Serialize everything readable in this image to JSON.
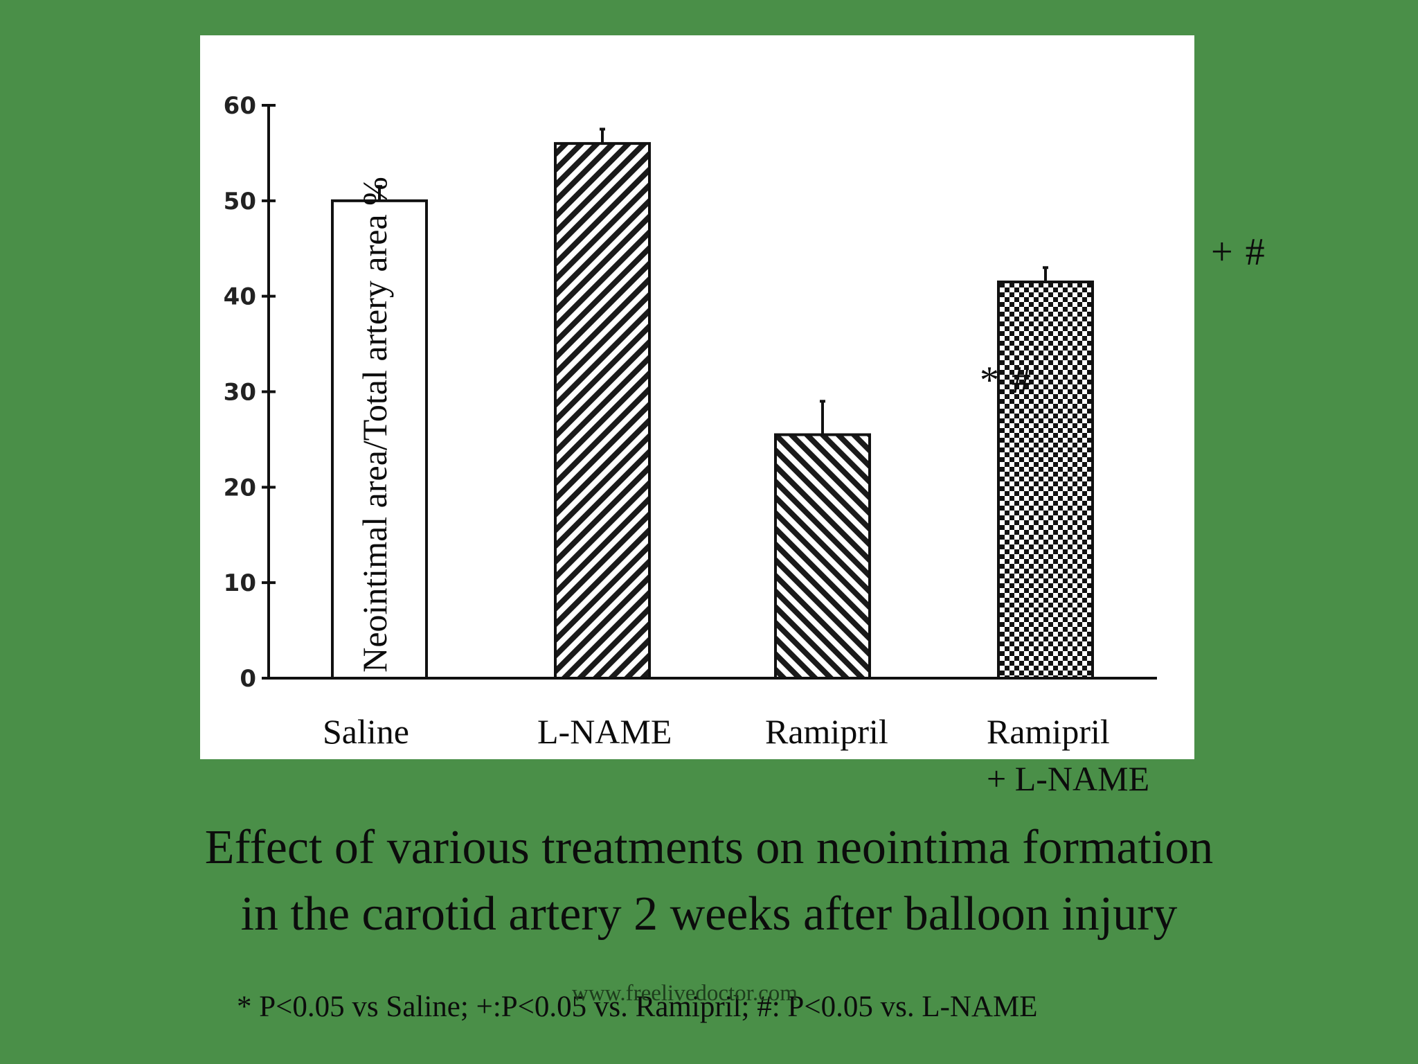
{
  "colors": {
    "background": "#4a8f48",
    "panel": "#ffffff",
    "ink": "#0c0c0c"
  },
  "chart_data": {
    "type": "bar",
    "title": "Effect of various treatments on neointima formation in the carotid artery 2 weeks after  balloon injury",
    "title_lines": [
      "Effect of various treatments on neointima formation",
      "in the carotid artery 2 weeks after  balloon injury"
    ],
    "xlabel": "",
    "ylabel": "Neointimal area/Total artery area %",
    "ylim": [
      0,
      60
    ],
    "yticks": [
      0,
      10,
      20,
      30,
      40,
      50,
      60
    ],
    "ytick_labels": [
      "0",
      "10",
      "20",
      "30",
      "40",
      "50",
      "60"
    ],
    "categories": [
      "Saline",
      "L-NAME",
      "Ramipril",
      "Ramipril\n+ L-NAME"
    ],
    "category_lines": [
      [
        "Saline"
      ],
      [
        "L-NAME"
      ],
      [
        "Ramipril"
      ],
      [
        "Ramipril",
        "+ L-NAME"
      ]
    ],
    "values": [
      50,
      56,
      25.5,
      41.5
    ],
    "error_upper": [
      1.5,
      1.5,
      3.5,
      1.5
    ],
    "fill_patterns": [
      "solid-white",
      "diagonal-stripes-right",
      "diagonal-stripes-left",
      "checkerboard"
    ],
    "annotations": [
      "",
      "",
      "* #",
      "+ #"
    ],
    "grid": false,
    "legend": "none"
  },
  "footnote": "* P<0.05 vs Saline;  +:P<0.05 vs. Ramipril; #: P<0.05 vs. L-NAME",
  "watermark": "www.freelivedoctor.com"
}
